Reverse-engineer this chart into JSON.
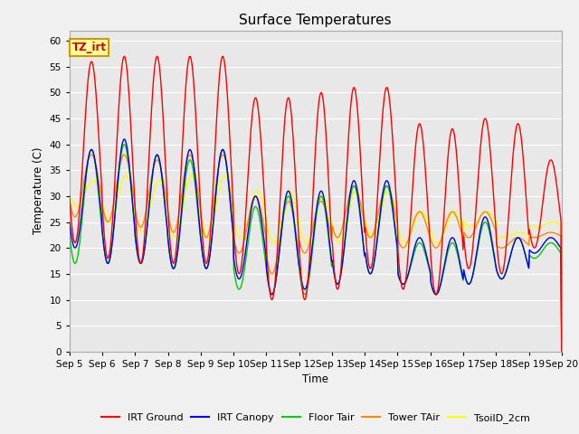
{
  "title": "Surface Temperatures",
  "xlabel": "Time",
  "ylabel": "Temperature (C)",
  "ylim": [
    0,
    62
  ],
  "yticks": [
    0,
    5,
    10,
    15,
    20,
    25,
    30,
    35,
    40,
    45,
    50,
    55,
    60
  ],
  "x_tick_labels": [
    "Sep 5",
    "Sep 6",
    "Sep 7",
    "Sep 8",
    "Sep 9",
    "Sep 10",
    "Sep 11",
    "Sep 12",
    "Sep 13",
    "Sep 14",
    "Sep 15",
    "Sep 16",
    "Sep 17",
    "Sep 18",
    "Sep 19",
    "Sep 20"
  ],
  "colors": {
    "IRT Ground": "#ff0000",
    "IRT Canopy": "#0000ee",
    "Floor Tair": "#00cc00",
    "Tower TAir": "#ff8800",
    "TsoilD_2cm": "#ffff00"
  },
  "legend_entries": [
    "IRT Ground",
    "IRT Canopy",
    "Floor Tair",
    "Tower TAir",
    "TsoilD_2cm"
  ],
  "fig_bg": "#f0f0f0",
  "plot_bg": "#e8e8e8",
  "annotation_text": "TZ_irt",
  "annotation_bg": "#ffff99",
  "annotation_border": "#cc9900",
  "grid_color": "#ffffff",
  "irt_ground_peaks": [
    56,
    57,
    57,
    57,
    57,
    49,
    49,
    50,
    51,
    51,
    44,
    43,
    45,
    44,
    37
  ],
  "irt_ground_nights": [
    21,
    18,
    17,
    17,
    17,
    15,
    10,
    10,
    12,
    16,
    12,
    11,
    16,
    15,
    20
  ],
  "irt_canopy_peaks": [
    39,
    41,
    38,
    39,
    39,
    30,
    31,
    31,
    33,
    33,
    22,
    22,
    26,
    22,
    22
  ],
  "irt_canopy_nights": [
    20,
    17,
    17,
    16,
    16,
    14,
    11,
    12,
    13,
    15,
    13,
    11,
    13,
    14,
    19
  ],
  "floor_tair_peaks": [
    39,
    40,
    38,
    37,
    39,
    28,
    30,
    30,
    32,
    32,
    21,
    21,
    25,
    22,
    21
  ],
  "floor_tair_nights": [
    17,
    17,
    17,
    16,
    16,
    12,
    11,
    11,
    13,
    15,
    13,
    11,
    13,
    14,
    18
  ],
  "tower_tair_peaks": [
    38,
    38,
    37,
    38,
    38,
    30,
    29,
    29,
    32,
    32,
    27,
    27,
    27,
    22,
    23
  ],
  "tower_tair_nights": [
    26,
    25,
    24,
    23,
    22,
    19,
    15,
    19,
    22,
    22,
    20,
    20,
    22,
    20,
    22
  ],
  "tsoil_peaks": [
    33,
    34,
    33,
    34,
    34,
    31,
    31,
    30,
    31,
    31,
    27,
    27,
    27,
    23,
    25
  ],
  "tsoil_nights": [
    28,
    25,
    23,
    22,
    22,
    22,
    21,
    21,
    21,
    22,
    21,
    21,
    24,
    22,
    24
  ],
  "peak_phase": 0.42,
  "tsoil_phase": 0.47,
  "n_points_per_day": 48
}
